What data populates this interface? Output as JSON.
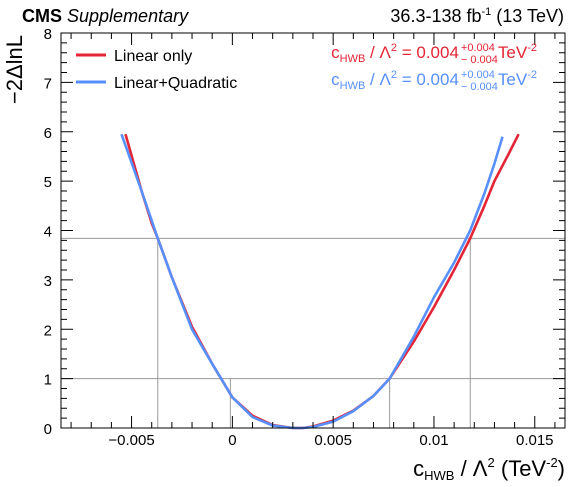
{
  "header": {
    "experiment": "CMS",
    "tag": "Supplementary",
    "lumi_range": "36.3-138 fb",
    "lumi_exp": "-1",
    "energy": "(13 TeV)"
  },
  "chart_data": {
    "type": "line",
    "xlabel": {
      "param": "c",
      "sub": "HWB",
      "div": " / Λ",
      "pow": "2",
      "unit_open": " (TeV",
      "unit_exp": "-2",
      "unit_close": ")"
    },
    "ylabel": "−2ΔlnL",
    "xlim": [
      -0.0085,
      0.0165
    ],
    "ylim": [
      0,
      8
    ],
    "xticks": [
      -0.005,
      0,
      0.005,
      0.01,
      0.015
    ],
    "xtick_labels": [
      "−0.005",
      "0",
      "0.005",
      "0.01",
      "0.015"
    ],
    "yticks": [
      0,
      1,
      2,
      3,
      4,
      5,
      6,
      7,
      8
    ],
    "ytick_labels": [
      "0",
      "1",
      "2",
      "3",
      "4",
      "5",
      "6",
      "7",
      "8"
    ],
    "hlines": [
      1,
      3.84
    ],
    "vlines": [
      {
        "x": -0.0037,
        "y": 3.84
      },
      {
        "x": -0.0001,
        "y": 1
      },
      {
        "x": 0.0078,
        "y": 1
      },
      {
        "x": 0.0118,
        "y": 3.84
      }
    ],
    "legend_position": "top-left",
    "series": [
      {
        "name": "Linear only",
        "color": "#e42536",
        "x": [
          -0.0053,
          -0.0045,
          -0.004,
          -0.0037,
          -0.003,
          -0.002,
          -0.001,
          0.0,
          0.001,
          0.002,
          0.003,
          0.0035,
          0.004,
          0.005,
          0.006,
          0.007,
          0.0078,
          0.009,
          0.01,
          0.011,
          0.0118,
          0.0125,
          0.013,
          0.0137,
          0.0142
        ],
        "y": [
          5.95,
          4.8,
          4.15,
          3.84,
          3.05,
          2.05,
          1.3,
          0.62,
          0.25,
          0.06,
          0.0,
          0.0,
          0.03,
          0.15,
          0.35,
          0.65,
          1.0,
          1.75,
          2.45,
          3.2,
          3.84,
          4.5,
          5.0,
          5.55,
          5.95
        ]
      },
      {
        "name": "Linear+Quadratic",
        "color": "#5790fc",
        "x": [
          -0.0055,
          -0.0045,
          -0.004,
          -0.0037,
          -0.003,
          -0.002,
          -0.001,
          0.0,
          0.001,
          0.002,
          0.003,
          0.0035,
          0.004,
          0.005,
          0.006,
          0.007,
          0.0078,
          0.009,
          0.01,
          0.011,
          0.0118,
          0.0125,
          0.013,
          0.0134
        ],
        "y": [
          5.95,
          4.8,
          4.2,
          3.84,
          3.05,
          2.0,
          1.3,
          0.62,
          0.22,
          0.05,
          0.0,
          0.0,
          0.02,
          0.13,
          0.34,
          0.65,
          1.0,
          1.85,
          2.65,
          3.35,
          4.0,
          4.75,
          5.35,
          5.9
        ]
      }
    ],
    "results": [
      {
        "param": "c",
        "sub": "HWB",
        "div": " / Λ",
        "pow": "2",
        "eq": " = 0.004",
        "up": "+0.004",
        "down": "− 0.004",
        "unit": " TeV",
        "unit_exp": "-2",
        "color": "#e42536"
      },
      {
        "param": "c",
        "sub": "HWB",
        "div": " / Λ",
        "pow": "2",
        "eq": " = 0.004",
        "up": "+0.004",
        "down": "− 0.004",
        "unit": " TeV",
        "unit_exp": "-2",
        "color": "#5790fc"
      }
    ],
    "reference_line_color": "#9a9a9a"
  }
}
